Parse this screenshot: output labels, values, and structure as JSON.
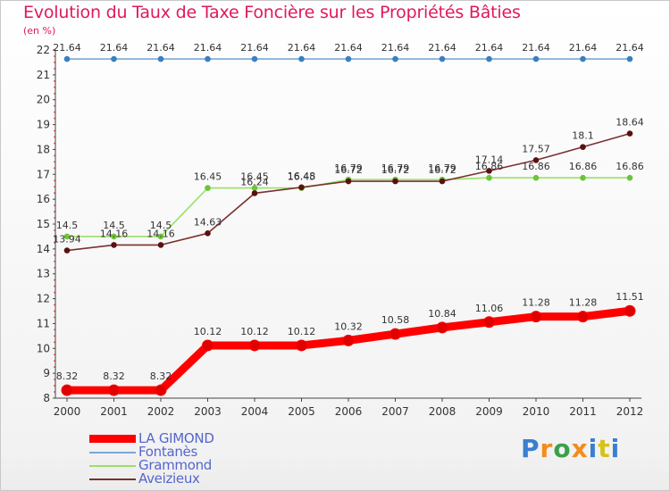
{
  "header": {
    "title": "Evolution du Taux de Taxe Foncière sur les Propriétés Bâties",
    "unit": "(en %)"
  },
  "logo": {
    "letters": [
      "P",
      "r",
      "o",
      "x",
      "i",
      "t",
      "i"
    ],
    "colors": [
      "#3a7fd0",
      "#f28c1c",
      "#3aa04a",
      "#f28c1c",
      "#3a7fd0",
      "#d6c21a",
      "#3a7fd0"
    ]
  },
  "chart_data": {
    "type": "line",
    "title": "Evolution du Taux de Taxe Foncière sur les Propriétés Bâties",
    "ylabel": "(en %)",
    "xlabel": "",
    "ylim": [
      8,
      22
    ],
    "yticks": [
      "8",
      "9",
      "10",
      "11",
      "12",
      "13",
      "14",
      "15",
      "16",
      "17",
      "18",
      "19",
      "20",
      "21",
      "22"
    ],
    "categories": [
      "2000",
      "2001",
      "2002",
      "2003",
      "2004",
      "2005",
      "2006",
      "2007",
      "2008",
      "2009",
      "2010",
      "2011",
      "2012"
    ],
    "series": [
      {
        "name": "LA GIMOND",
        "color": "#ff0000",
        "marker": "#e00000",
        "labels": [
          "8.32",
          "8.32",
          "8.32",
          "10.12",
          "10.12",
          "10.12",
          "10.32",
          "10.58",
          "10.84",
          "11.06",
          "11.28",
          "11.28",
          "11.51"
        ],
        "values": [
          8.32,
          8.32,
          8.32,
          10.12,
          10.12,
          10.12,
          10.32,
          10.58,
          10.84,
          11.06,
          11.28,
          11.28,
          11.51
        ]
      },
      {
        "name": "Fontanès",
        "color": "#7aa8d6",
        "marker": "#3a7fc0",
        "labels": [
          "21.64",
          "21.64",
          "21.64",
          "21.64",
          "21.64",
          "21.64",
          "21.64",
          "21.64",
          "21.64",
          "21.64",
          "21.64",
          "21.64",
          "21.64"
        ],
        "values": [
          21.64,
          21.64,
          21.64,
          21.64,
          21.64,
          21.64,
          21.64,
          21.64,
          21.64,
          21.64,
          21.64,
          21.64,
          21.64
        ]
      },
      {
        "name": "Grammond",
        "color": "#99e066",
        "marker": "#6cc43a",
        "labels": [
          "14.5",
          "14.5",
          "14.5",
          "16.45",
          "16.45",
          "16.45",
          "16.79",
          "16.79",
          "16.79",
          "16.86",
          "16.86",
          "16.86",
          "16.86"
        ],
        "values": [
          14.5,
          14.5,
          14.5,
          16.45,
          16.45,
          16.45,
          16.79,
          16.79,
          16.79,
          16.86,
          16.86,
          16.86,
          16.86
        ]
      },
      {
        "name": "Aveizieux",
        "color": "#7a3030",
        "marker": "#5a1010",
        "labels": [
          "13.94",
          "14.16",
          "14.16",
          "14.63",
          "16.24",
          "16.48",
          "16.72",
          "16.72",
          "16.72",
          "17.14",
          "17.57",
          "18.1",
          "18.64"
        ],
        "values": [
          13.94,
          14.16,
          14.16,
          14.63,
          16.24,
          16.48,
          16.72,
          16.72,
          16.72,
          17.14,
          17.57,
          18.1,
          18.64
        ]
      }
    ]
  }
}
